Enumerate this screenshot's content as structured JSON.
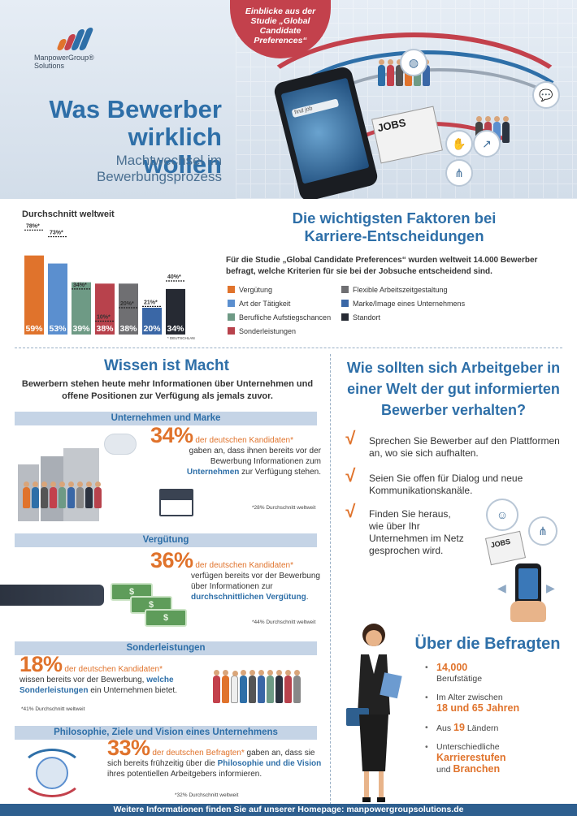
{
  "header": {
    "logo_line1": "ManpowerGroup®",
    "logo_line2": "Solutions",
    "study_badge": "Einblicke aus der Studie „Global Candidate Preferences“",
    "title_line1": "Was Bewerber",
    "title_line2": "wirklich wollen",
    "subtitle_line1": "Machtwechsel im",
    "subtitle_line2": "Bewerbungsprozess",
    "phone_search": "find job",
    "news_label": "JOBS",
    "colors": {
      "title": "#2e6fa8",
      "badge": "#c3414c",
      "orange": "#e0732c"
    }
  },
  "chart_data": {
    "type": "bar",
    "title": "Durchschnitt weltweit",
    "categories": [
      "Vergütung",
      "Art der Tätigkeit",
      "Berufliche Aufstiegschancen",
      "Sonderleistungen",
      "Flexible Arbeitszeitgestaltung",
      "Marke/Image eines Unternehmens",
      "Standort"
    ],
    "series": [
      {
        "values": [
          59,
          53,
          39,
          38,
          38,
          20,
          34
        ],
        "label_suffix": "%"
      },
      {
        "values": [
          78,
          73,
          34,
          10,
          20,
          21,
          40
        ],
        "label_suffix": "%*"
      }
    ],
    "bar_labels": [
      "59%",
      "53%",
      "39%",
      "38%",
      "38%",
      "20%",
      "34%"
    ],
    "worldwide_labels": [
      "78%*",
      "73%*",
      "34%*",
      "10%*",
      "20%*",
      "21%*",
      "40%*"
    ],
    "colors": [
      "#e0732c",
      "#5b8fcf",
      "#6e9a85",
      "#b8424c",
      "#6f6f72",
      "#3a67a6",
      "#262a33"
    ],
    "note": "* DEUTSCHLAND",
    "ylim": [
      0,
      80
    ]
  },
  "factors": {
    "title_line1": "Die wichtigsten Faktoren bei",
    "title_line2": "Karriere-Entscheidungen",
    "description": "Für die Studie „Global Candidate Preferences“ wurden weltweit 14.000 Bewerber befragt, welche Kriterien für sie bei der Jobsuche entscheidend sind.",
    "legend": [
      {
        "label": "Vergütung",
        "color": "#e0732c"
      },
      {
        "label": "Art der Tätigkeit",
        "color": "#5b8fcf"
      },
      {
        "label": "Berufliche Aufstiegschancen",
        "color": "#6e9a85"
      },
      {
        "label": "Sonderleistungen",
        "color": "#b8424c"
      },
      {
        "label": "Flexible Arbeitszeitgestaltung",
        "color": "#6f6f72"
      },
      {
        "label": "Marke/Image eines Unternehmens",
        "color": "#3a67a6"
      },
      {
        "label": "Standort",
        "color": "#262a33"
      }
    ]
  },
  "wissen": {
    "title": "Wissen ist Macht",
    "subtitle": "Bewerbern stehen heute mehr Informationen über Unternehmen und offene Positionen zur Verfügung als jemals zuvor.",
    "sections": [
      {
        "band": "Unternehmen und Marke",
        "number": "34%",
        "lead": "der deutschen Kandidaten*",
        "text_a": "gaben an, dass ihnen bereits vor der Bewerbung Informationen zum",
        "highlight": "Unternehmen",
        "text_b": "zur Verfügung stehen.",
        "note": "*28% Durchschnitt weltweit"
      },
      {
        "band": "Vergütung",
        "number": "36%",
        "lead": "der deutschen Kandidaten*",
        "text_a": "verfügen bereits vor der Bewerbung über Informationen zur",
        "highlight": "durchschnittlichen Vergütung",
        "text_b": ".",
        "note": "*44% Durchschnitt weltweit"
      },
      {
        "band": "Sonderleistungen",
        "number": "18%",
        "lead": "der deutschen Kandidaten*",
        "text_a": "wissen bereits vor der Bewerbung,",
        "highlight": "welche Sonderleistungen",
        "text_b": "ein Unternehmen bietet.",
        "note": "*41% Durchschnitt weltweit"
      },
      {
        "band": "Philosophie, Ziele und Vision eines Unternehmens",
        "number": "33%",
        "lead": "der deutschen Befragten*",
        "text_a": "gaben an, dass sie sich bereits frühzeitig über die",
        "highlight": "Philosophie und die Vision",
        "text_b": "ihres potentiellen Arbeitgebers informieren.",
        "note": "*32% Durchschnitt weltweit"
      }
    ],
    "money_symbol": "$"
  },
  "arbeitgeber": {
    "title": "Wie sollten sich Arbeitgeber in einer Welt der gut informierten Bewerber verhalten?",
    "check_symbol": "√",
    "tips": [
      "Sprechen Sie Bewerber auf den Plattformen an, wo sie sich aufhalten.",
      "Seien Sie offen für Dialog und neue Kommunikationskanäle.",
      "Finden Sie heraus, wie über Ihr Unternehmen im Netz gesprochen wird."
    ],
    "jobs_label": "JOBS"
  },
  "befragte": {
    "title": "Über die Befragten",
    "facts": [
      {
        "pre": "",
        "highlight": "14,000",
        "post": "Berufstätige"
      },
      {
        "pre": "Im Alter zwischen",
        "highlight": "18 und 65 Jahren",
        "post": ""
      },
      {
        "pre": "Aus",
        "highlight": "19",
        "post": "Ländern"
      },
      {
        "pre": "Unterschiedliche",
        "highlight": "Karrierestufen",
        "post": "und",
        "highlight2": "Branchen"
      }
    ]
  },
  "footer": {
    "text": "Weitere Informationen finden Sie auf unserer Homepage: manpowergroupsolutions.de"
  }
}
